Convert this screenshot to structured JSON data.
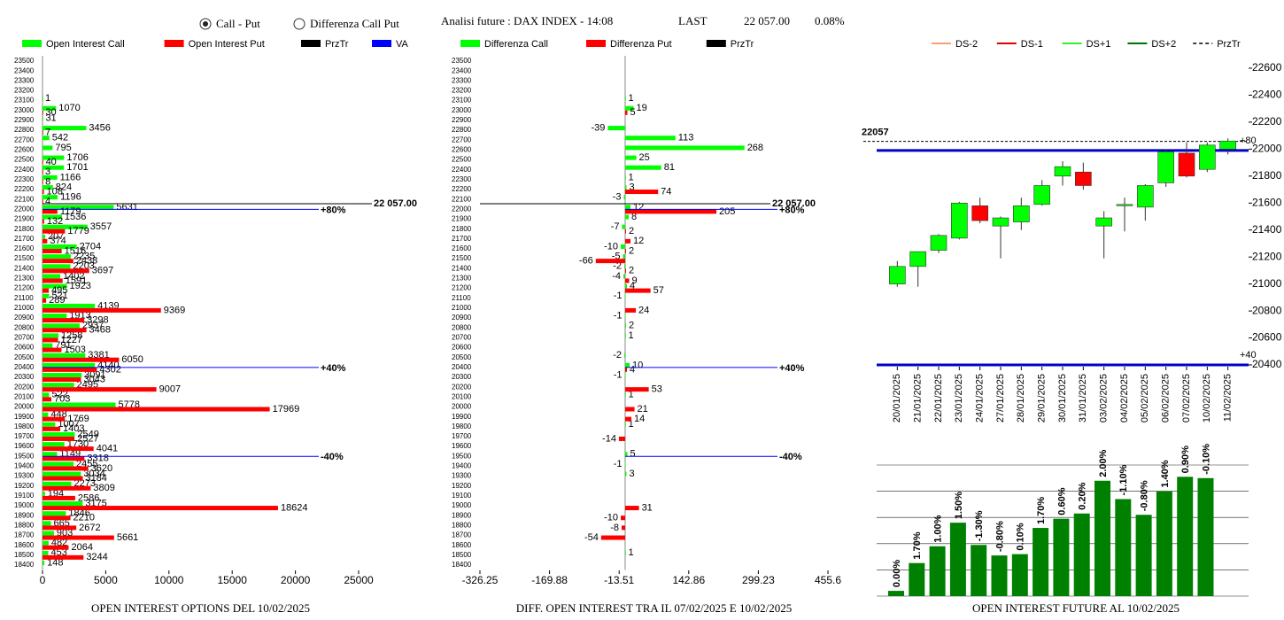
{
  "header": {
    "options": [
      "Call - Put",
      "Differenza Call Put"
    ],
    "selected": 0,
    "title": "Analisi future : DAX INDEX - 14:08",
    "last_label": "LAST",
    "last": "22 057.00",
    "change": "0.08%"
  },
  "chart_data": [
    {
      "type": "hbar",
      "title": "OPEN INTEREST OPTIONS DEL 10/02/2025",
      "categories": [
        23500,
        23400,
        23300,
        23200,
        23100,
        23000,
        22900,
        22800,
        22700,
        22600,
        22500,
        22400,
        22300,
        22200,
        22100,
        22000,
        21900,
        21800,
        21700,
        21600,
        21500,
        21400,
        21300,
        21200,
        21100,
        21000,
        20900,
        20800,
        20700,
        20600,
        20500,
        20400,
        20300,
        20200,
        20100,
        20000,
        19900,
        19800,
        19700,
        19600,
        19500,
        19400,
        19300,
        19200,
        19100,
        19000,
        18900,
        18800,
        18700,
        18600,
        18500,
        18400
      ],
      "series": [
        {
          "name": "Open Interest Call",
          "color": "#00ff00",
          "values": [
            null,
            null,
            null,
            null,
            1,
            1070,
            31,
            3456,
            542,
            795,
            1706,
            1701,
            1166,
            824,
            1196,
            5631,
            1536,
            3557,
            207,
            2704,
            2235,
            2203,
            1402,
            1923,
            521,
            4139,
            1913,
            2937,
            1258,
            791,
            3381,
            4140,
            3091,
            2495,
            522,
            5778,
            448,
            1007,
            2549,
            1730,
            1149,
            2455,
            3034,
            2273,
            194,
            3175,
            1846,
            665,
            903,
            482,
            453,
            148
          ]
        },
        {
          "name": "Open Interest Put",
          "color": "#ff0000",
          "values": [
            null,
            null,
            null,
            null,
            null,
            30,
            null,
            7,
            null,
            null,
            40,
            3,
            8,
            108,
            4,
            1179,
            132,
            1779,
            374,
            1516,
            2438,
            3697,
            1591,
            495,
            289,
            9369,
            3298,
            3468,
            1227,
            1503,
            6050,
            4302,
            3043,
            9007,
            703,
            17969,
            1769,
            1403,
            2527,
            4041,
            3318,
            3620,
            3184,
            3809,
            2586,
            18624,
            2210,
            2672,
            5661,
            2064,
            3244,
            null
          ]
        }
      ],
      "lines": [
        {
          "name": "PrzTr",
          "color": "#000000"
        },
        {
          "name": "VA",
          "color": "#0000ff"
        }
      ],
      "price": {
        "value": 22057,
        "label": "22 057.00"
      },
      "levels": [
        {
          "value": 22000,
          "label": "+80%"
        },
        {
          "value": 20400,
          "label": "+40%"
        },
        {
          "value": 19500,
          "label": "-40%"
        }
      ],
      "xlim": [
        0,
        25000
      ],
      "xticks": [
        0,
        5000,
        10000,
        15000,
        20000,
        25000
      ]
    },
    {
      "type": "hbar",
      "title": "DIFF. OPEN INTEREST TRA IL 07/02/2025 E 10/02/2025",
      "categories": [
        23500,
        23400,
        23300,
        23200,
        23100,
        23000,
        22900,
        22800,
        22700,
        22600,
        22500,
        22400,
        22300,
        22200,
        22100,
        22000,
        21900,
        21800,
        21700,
        21600,
        21500,
        21400,
        21300,
        21200,
        21100,
        21000,
        20900,
        20800,
        20700,
        20600,
        20500,
        20400,
        20300,
        20200,
        20100,
        20000,
        19900,
        19800,
        19700,
        19600,
        19500,
        19400,
        19300,
        19200,
        19100,
        19000,
        18900,
        18800,
        18700,
        18600,
        18500,
        18400
      ],
      "series": [
        {
          "name": "Differenza Call",
          "color": "#00ff00",
          "values": [
            null,
            null,
            null,
            null,
            1,
            19,
            null,
            -39,
            113,
            268,
            25,
            81,
            1,
            3,
            -3,
            12,
            8,
            -7,
            null,
            -10,
            -5,
            -2,
            -4,
            4,
            -1,
            null,
            -1,
            2,
            1,
            null,
            -2,
            10,
            -1,
            null,
            1,
            null,
            null,
            1,
            null,
            null,
            5,
            -1,
            3,
            null,
            null,
            null,
            null,
            null,
            null,
            null,
            1,
            null
          ]
        },
        {
          "name": "Differenza Put",
          "color": "#ff0000",
          "values": [
            null,
            null,
            null,
            null,
            null,
            5,
            null,
            null,
            null,
            null,
            null,
            null,
            null,
            74,
            null,
            205,
            null,
            2,
            12,
            2,
            -66,
            2,
            9,
            57,
            null,
            24,
            null,
            null,
            null,
            null,
            null,
            4,
            null,
            53,
            null,
            21,
            14,
            null,
            -14,
            null,
            null,
            null,
            null,
            null,
            null,
            31,
            -10,
            -8,
            -54,
            null,
            null,
            null
          ]
        }
      ],
      "lines": [
        {
          "name": "PrzTr",
          "color": "#000000"
        }
      ],
      "price": {
        "value": 22057,
        "label": "22 057.00"
      },
      "levels": [
        {
          "value": 22000,
          "label": "+80%"
        },
        {
          "value": 20400,
          "label": "+40%"
        },
        {
          "value": 19500,
          "label": "-40%"
        }
      ],
      "xlim": [
        -326.25,
        455.6
      ],
      "xticks": [
        -326.25,
        -169.88,
        -13.51,
        142.86,
        299.23,
        455.6
      ]
    },
    {
      "type": "candlestick",
      "legend": [
        {
          "name": "DS-2",
          "color": "#f4a070"
        },
        {
          "name": "DS-1",
          "color": "#e00000"
        },
        {
          "name": "DS+1",
          "color": "#33ee33"
        },
        {
          "name": "DS+2",
          "color": "#007000"
        },
        {
          "name": "PrzTr",
          "color": "#000000",
          "dashed": true
        }
      ],
      "x": [
        "20/01/2025",
        "21/01/2025",
        "22/01/2025",
        "23/01/2025",
        "24/01/2025",
        "27/01/2025",
        "28/01/2025",
        "29/01/2025",
        "30/01/2025",
        "31/01/2025",
        "03/02/2025",
        "04/02/2025",
        "05/02/2025",
        "06/02/2025",
        "07/02/2025",
        "10/02/2025",
        "11/02/2025"
      ],
      "open": [
        21000,
        21130,
        21250,
        21340,
        21580,
        21430,
        21460,
        21590,
        21800,
        21830,
        21430,
        21580,
        21570,
        21750,
        21970,
        21850,
        22000
      ],
      "close": [
        21130,
        21240,
        21360,
        21600,
        21470,
        21490,
        21580,
        21730,
        21870,
        21730,
        21490,
        21590,
        21730,
        21980,
        21800,
        22030,
        22060
      ],
      "high": [
        21170,
        21240,
        21370,
        21610,
        21640,
        21500,
        21640,
        21770,
        21910,
        21900,
        21540,
        21640,
        21740,
        22000,
        22050,
        22050,
        22080
      ],
      "low": [
        20980,
        20980,
        21230,
        21330,
        21450,
        21190,
        21400,
        21580,
        21730,
        21700,
        21190,
        21390,
        21470,
        21720,
        21790,
        21830,
        21960
      ],
      "up_color": "#00ff00",
      "down_color": "#ff0000",
      "price": 22057,
      "levels": [
        {
          "value": 21990,
          "label": "+80"
        },
        {
          "value": 20400,
          "label": "+40"
        }
      ],
      "level_color": "#0000cc",
      "ylim": [
        20400,
        22600
      ],
      "yticks": [
        20400,
        20600,
        20800,
        21000,
        21200,
        21400,
        21600,
        21800,
        22000,
        22200,
        22400,
        22600
      ]
    },
    {
      "type": "bar",
      "title": "OPEN INTEREST FUTURE AL 10/02/2025",
      "values": [
        0.2,
        1.26,
        1.9,
        2.8,
        1.95,
        1.55,
        1.6,
        2.6,
        2.95,
        3.15,
        4.4,
        3.7,
        3.1,
        4.0,
        4.55,
        4.5
      ],
      "bar_labels": [
        "0.00%",
        "1.70%",
        "1.00%",
        "1.50%",
        "-1.30%",
        "-0.80%",
        "0.10%",
        "1.70%",
        "0.60%",
        "0.20%",
        "2.00%",
        "-1.10%",
        "-0.80%",
        "1.40%",
        "0.90%",
        "-0.10%"
      ],
      "color": "#008000",
      "ylim": [
        0,
        5
      ],
      "grid": true
    }
  ]
}
